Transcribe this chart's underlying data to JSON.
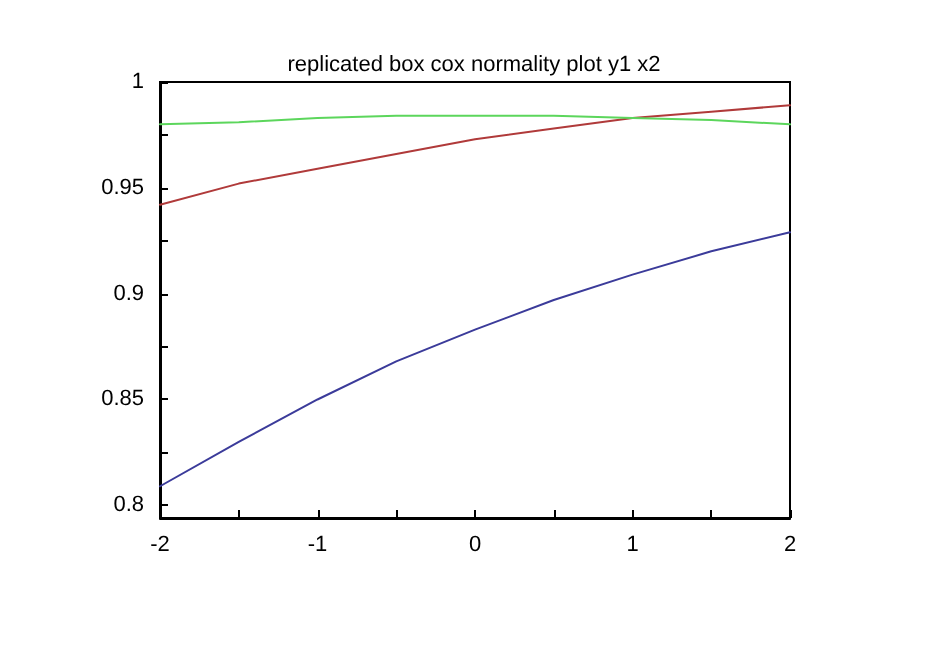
{
  "chart_data": {
    "type": "line",
    "title": "replicated box cox normality plot y1 x2",
    "x": [
      -2,
      -1.5,
      -1,
      -0.5,
      0,
      0.5,
      1,
      1.5,
      2
    ],
    "series": [
      {
        "color": "#3b3b9a",
        "values": [
          0.809,
          0.83,
          0.85,
          0.868,
          0.883,
          0.897,
          0.909,
          0.92,
          0.929
        ]
      },
      {
        "color": "#b03a3a",
        "values": [
          0.942,
          0.952,
          0.959,
          0.966,
          0.973,
          0.978,
          0.983,
          0.986,
          0.989
        ]
      },
      {
        "color": "#5cd65c",
        "values": [
          0.98,
          0.981,
          0.983,
          0.984,
          0.984,
          0.984,
          0.983,
          0.982,
          0.98
        ]
      }
    ],
    "xlim": [
      -2,
      2
    ],
    "xticks": [
      -2,
      {
        "value": -1.5,
        "label": null
      },
      -1,
      {
        "value": -0.5,
        "label": null
      },
      0,
      {
        "value": 0.5,
        "label": null
      },
      1,
      {
        "value": 1.5,
        "label": null
      },
      2
    ],
    "ylim": [
      0.794,
      1
    ],
    "yticks": [
      0.8,
      {
        "value": 0.825,
        "label": null
      },
      0.85,
      {
        "value": 0.875,
        "label": null
      },
      0.9,
      {
        "value": 0.925,
        "label": null
      },
      0.95,
      {
        "value": 0.975,
        "label": null
      },
      1
    ],
    "grid": false,
    "marker": "none",
    "line_style": "solid"
  }
}
